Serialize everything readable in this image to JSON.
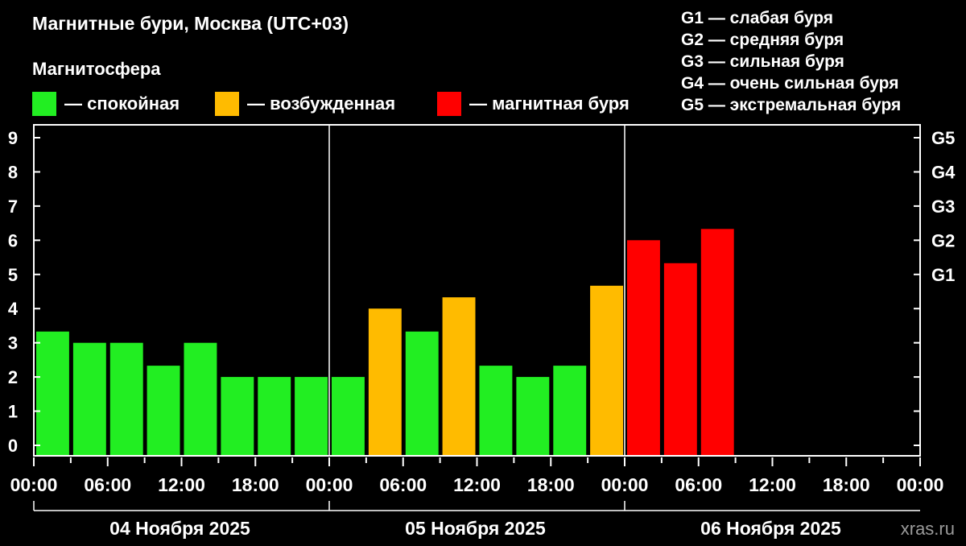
{
  "title": "Магнитные бури, Москва (UTC+03)",
  "legend": {
    "title": "Магнитосфера",
    "items": [
      {
        "label": "— спокойная",
        "color": "#22ee22"
      },
      {
        "label": "— возбужденная",
        "color": "#ffbb00"
      },
      {
        "label": "— магнитная буря",
        "color": "#ff0000"
      }
    ]
  },
  "g_legend": [
    "G1 — слабая буря",
    "G2 — средняя буря",
    "G3 — сильная буря",
    "G4 — очень сильная буря",
    "G5 — экстремальная буря"
  ],
  "watermark": "xras.ru",
  "chart_data": {
    "type": "bar",
    "title": "Магнитные бури, Москва (UTC+03)",
    "ylim": [
      0,
      9
    ],
    "y_ticks": [
      "0",
      "1",
      "2",
      "3",
      "4",
      "5",
      "6",
      "7",
      "8",
      "9"
    ],
    "right_ticks": [
      {
        "value": 5,
        "label": "G1"
      },
      {
        "value": 6,
        "label": "G2"
      },
      {
        "value": 7,
        "label": "G3"
      },
      {
        "value": 8,
        "label": "G4"
      },
      {
        "value": 9,
        "label": "G5"
      }
    ],
    "x_ticks": [
      "00:00",
      "06:00",
      "12:00",
      "18:00",
      "00:00",
      "06:00",
      "12:00",
      "18:00",
      "00:00",
      "06:00",
      "12:00",
      "18:00",
      "00:00"
    ],
    "days": [
      "04 Ноября 2025",
      "05 Ноября 2025",
      "06 Ноября 2025"
    ],
    "total_slots": 24,
    "grid": false,
    "colors": {
      "calm": "#22ee22",
      "excited": "#ffbb00",
      "storm": "#ff0000"
    },
    "bars": [
      {
        "start": "04 Ноября 2025 00:00",
        "value": 3.33,
        "state": "calm"
      },
      {
        "start": "04 Ноября 2025 03:00",
        "value": 3.0,
        "state": "calm"
      },
      {
        "start": "04 Ноября 2025 06:00",
        "value": 3.0,
        "state": "calm"
      },
      {
        "start": "04 Ноября 2025 09:00",
        "value": 2.33,
        "state": "calm"
      },
      {
        "start": "04 Ноября 2025 12:00",
        "value": 3.0,
        "state": "calm"
      },
      {
        "start": "04 Ноября 2025 15:00",
        "value": 2.0,
        "state": "calm"
      },
      {
        "start": "04 Ноября 2025 18:00",
        "value": 2.0,
        "state": "calm"
      },
      {
        "start": "04 Ноября 2025 21:00",
        "value": 2.0,
        "state": "calm"
      },
      {
        "start": "05 Ноября 2025 00:00",
        "value": 2.0,
        "state": "calm"
      },
      {
        "start": "05 Ноября 2025 03:00",
        "value": 4.0,
        "state": "excited"
      },
      {
        "start": "05 Ноября 2025 06:00",
        "value": 3.33,
        "state": "calm"
      },
      {
        "start": "05 Ноября 2025 09:00",
        "value": 4.33,
        "state": "excited"
      },
      {
        "start": "05 Ноября 2025 12:00",
        "value": 2.33,
        "state": "calm"
      },
      {
        "start": "05 Ноября 2025 15:00",
        "value": 2.0,
        "state": "calm"
      },
      {
        "start": "05 Ноября 2025 18:00",
        "value": 2.33,
        "state": "calm"
      },
      {
        "start": "05 Ноября 2025 21:00",
        "value": 4.67,
        "state": "excited"
      },
      {
        "start": "06 Ноября 2025 00:00",
        "value": 6.0,
        "state": "storm"
      },
      {
        "start": "06 Ноября 2025 03:00",
        "value": 5.33,
        "state": "storm"
      },
      {
        "start": "06 Ноября 2025 06:00",
        "value": 6.33,
        "state": "storm"
      }
    ]
  }
}
